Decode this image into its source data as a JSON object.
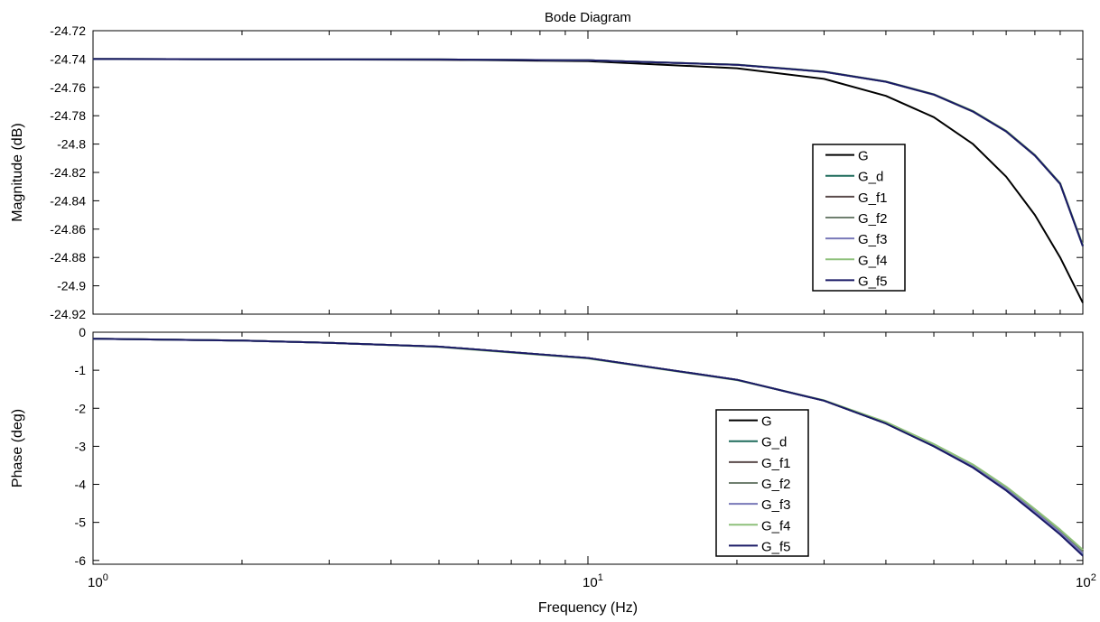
{
  "chart_data": {
    "type": "line",
    "title": "Bode Diagram",
    "xlabel": "Frequency (Hz)",
    "xscale": "log",
    "xlim": [
      1,
      100
    ],
    "x_ticks": [
      {
        "value": 1,
        "base": "10",
        "exp": "0"
      },
      {
        "value": 10,
        "base": "10",
        "exp": "1"
      },
      {
        "value": 100,
        "base": "10",
        "exp": "2"
      }
    ],
    "grid": false,
    "series_legend": [
      {
        "name": "G",
        "color": "#000000"
      },
      {
        "name": "G_d",
        "color": "#1f6b5c"
      },
      {
        "name": "G_f1",
        "color": "#5a4a4a"
      },
      {
        "name": "G_f2",
        "color": "#6f7f6f"
      },
      {
        "name": "G_f3",
        "color": "#7878b8"
      },
      {
        "name": "G_f4",
        "color": "#8ec07a"
      },
      {
        "name": "G_f5",
        "color": "#1a1a66"
      }
    ],
    "panels": [
      {
        "id": "magnitude",
        "ylabel": "Magnitude (dB)",
        "ylim": [
          -24.92,
          -24.72
        ],
        "y_ticks": [
          "-24.72",
          "-24.74",
          "-24.76",
          "-24.78",
          "-24.8",
          "-24.82",
          "-24.84",
          "-24.86",
          "-24.88",
          "-24.9",
          "-24.92"
        ],
        "y_tick_values": [
          -24.72,
          -24.74,
          -24.76,
          -24.78,
          -24.8,
          -24.82,
          -24.84,
          -24.86,
          -24.88,
          -24.9,
          -24.92
        ],
        "legend_position": "right",
        "x": [
          1,
          2,
          5,
          10,
          20,
          30,
          40,
          50,
          60,
          70,
          80,
          90,
          100
        ],
        "series": [
          {
            "name": "G",
            "color": "#000000",
            "values": [
              -24.74,
              -24.7402,
              -24.7405,
              -24.7415,
              -24.7465,
              -24.754,
              -24.766,
              -24.781,
              -24.8,
              -24.823,
              -24.85,
              -24.88,
              -24.912
            ]
          },
          {
            "name": "G_d",
            "color": "#1f6b5c",
            "values": [
              -24.74,
              -24.7401,
              -24.7403,
              -24.7409,
              -24.744,
              -24.749,
              -24.756,
              -24.765,
              -24.777,
              -24.791,
              -24.808,
              -24.828,
              -24.872
            ]
          },
          {
            "name": "G_f1",
            "color": "#5a4a4a",
            "values": [
              -24.74,
              -24.7401,
              -24.7403,
              -24.7409,
              -24.744,
              -24.7489,
              -24.7559,
              -24.765,
              -24.7768,
              -24.7908,
              -24.8078,
              -24.8278,
              -24.8715
            ]
          },
          {
            "name": "G_f2",
            "color": "#6f7f6f",
            "values": [
              -24.74,
              -24.7401,
              -24.7403,
              -24.7409,
              -24.7441,
              -24.7491,
              -24.7561,
              -24.7652,
              -24.7772,
              -24.7912,
              -24.8082,
              -24.8282,
              -24.8722
            ]
          },
          {
            "name": "G_f3",
            "color": "#7878b8",
            "values": [
              -24.74,
              -24.7401,
              -24.7403,
              -24.7409,
              -24.744,
              -24.749,
              -24.756,
              -24.765,
              -24.777,
              -24.791,
              -24.808,
              -24.828,
              -24.872
            ]
          },
          {
            "name": "G_f4",
            "color": "#8ec07a",
            "values": [
              -24.74,
              -24.7401,
              -24.7403,
              -24.7409,
              -24.7439,
              -24.7488,
              -24.7558,
              -24.7648,
              -24.7766,
              -24.7906,
              -24.8076,
              -24.8276,
              -24.8712
            ]
          },
          {
            "name": "G_f5",
            "color": "#1a1a66",
            "values": [
              -24.74,
              -24.7401,
              -24.7403,
              -24.7409,
              -24.744,
              -24.749,
              -24.756,
              -24.765,
              -24.777,
              -24.791,
              -24.808,
              -24.828,
              -24.872
            ]
          }
        ]
      },
      {
        "id": "phase",
        "ylabel": "Phase (deg)",
        "ylim": [
          -6.1,
          0
        ],
        "y_ticks": [
          "0",
          "-1",
          "-2",
          "-3",
          "-4",
          "-5",
          "-6"
        ],
        "y_tick_values": [
          0,
          -1,
          -2,
          -3,
          -4,
          -5,
          -6
        ],
        "legend_position": "bottom-center",
        "x": [
          1,
          2,
          3,
          5,
          10,
          20,
          30,
          40,
          50,
          60,
          70,
          80,
          90,
          100
        ],
        "series": [
          {
            "name": "G",
            "color": "#000000",
            "values": [
              -0.17,
              -0.22,
              -0.28,
              -0.38,
              -0.68,
              -1.25,
              -1.8,
              -2.4,
              -3.0,
              -3.55,
              -4.15,
              -4.75,
              -5.3,
              -5.85
            ]
          },
          {
            "name": "G_d",
            "color": "#1f6b5c",
            "values": [
              -0.17,
              -0.22,
              -0.28,
              -0.38,
              -0.68,
              -1.25,
              -1.8,
              -2.4,
              -3.0,
              -3.55,
              -4.15,
              -4.75,
              -5.3,
              -5.85
            ]
          },
          {
            "name": "G_f1",
            "color": "#5a4a4a",
            "values": [
              -0.17,
              -0.22,
              -0.28,
              -0.38,
              -0.68,
              -1.25,
              -1.8,
              -2.38,
              -2.97,
              -3.52,
              -4.1,
              -4.7,
              -5.25,
              -5.78
            ]
          },
          {
            "name": "G_f2",
            "color": "#6f7f6f",
            "values": [
              -0.17,
              -0.22,
              -0.28,
              -0.38,
              -0.68,
              -1.25,
              -1.8,
              -2.38,
              -2.97,
              -3.52,
              -4.1,
              -4.7,
              -5.25,
              -5.78
            ]
          },
          {
            "name": "G_f3",
            "color": "#7878b8",
            "values": [
              -0.17,
              -0.22,
              -0.28,
              -0.38,
              -0.68,
              -1.25,
              -1.8,
              -2.39,
              -2.98,
              -3.53,
              -4.12,
              -4.72,
              -5.27,
              -5.82
            ]
          },
          {
            "name": "G_f4",
            "color": "#8ec07a",
            "values": [
              -0.17,
              -0.22,
              -0.28,
              -0.39,
              -0.69,
              -1.26,
              -1.79,
              -2.36,
              -2.94,
              -3.48,
              -4.06,
              -4.65,
              -5.19,
              -5.72
            ]
          },
          {
            "name": "G_f5",
            "color": "#1a1a66",
            "values": [
              -0.17,
              -0.22,
              -0.28,
              -0.38,
              -0.68,
              -1.25,
              -1.8,
              -2.4,
              -3.0,
              -3.56,
              -4.16,
              -4.77,
              -5.32,
              -5.88
            ]
          }
        ]
      }
    ]
  }
}
